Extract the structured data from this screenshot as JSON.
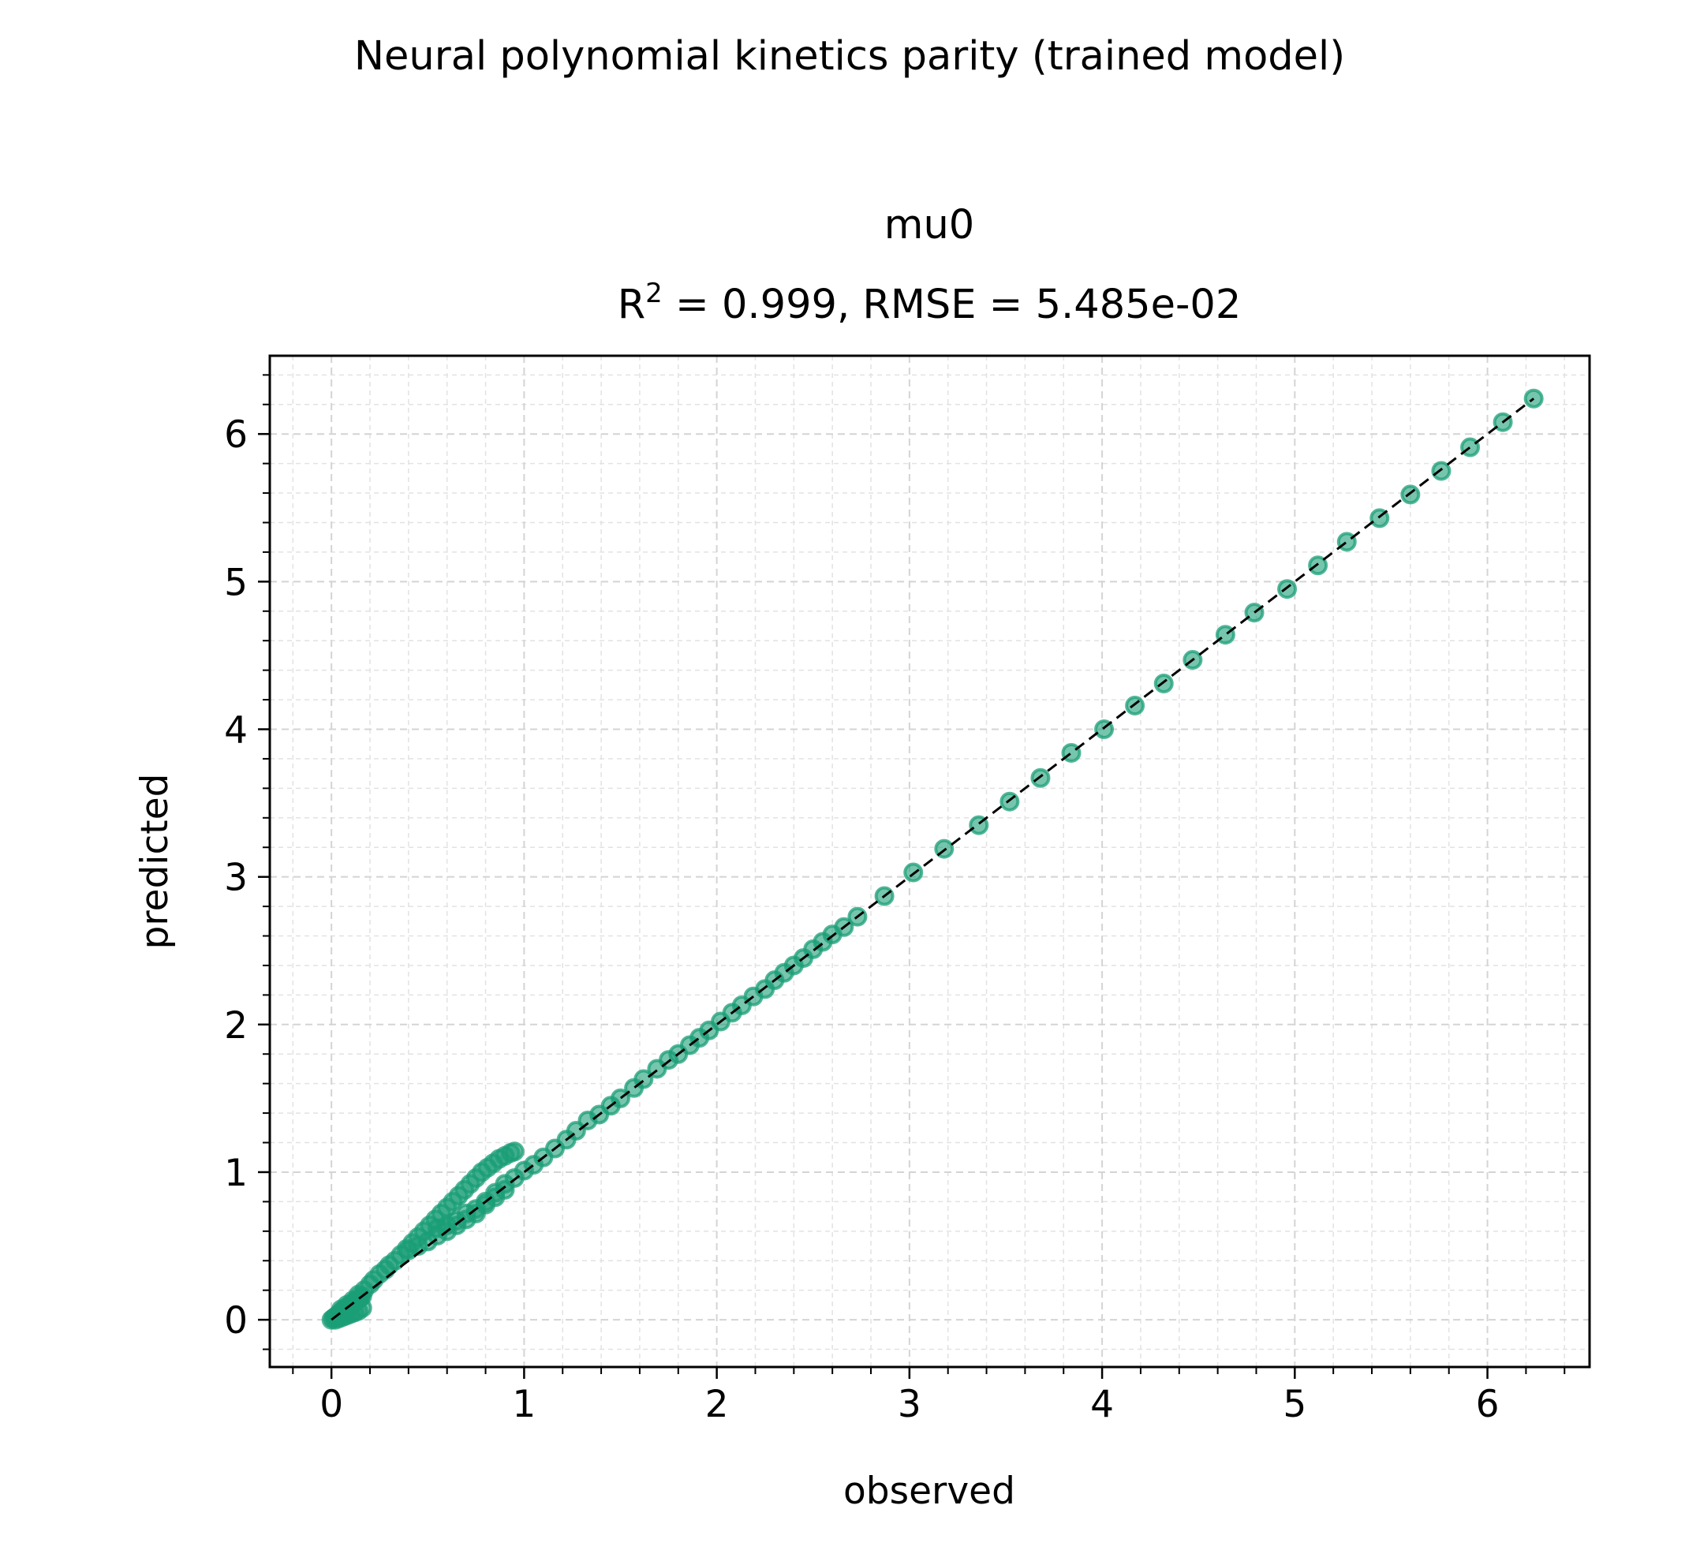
{
  "figure": {
    "suptitle": "Neural polynomial kinetics parity (trained model)"
  },
  "chart_data": {
    "type": "scatter",
    "title_line1": "mu0",
    "title_line2_prefix": "R",
    "title_line2_sup": "2",
    "title_line2_suffix": " = 0.999, RMSE = 5.485e-02",
    "xlabel": "observed",
    "ylabel": "predicted",
    "xlim": [
      -0.32,
      6.53
    ],
    "ylim": [
      -0.32,
      6.53
    ],
    "xticks": [
      0,
      1,
      2,
      3,
      4,
      5,
      6
    ],
    "yticks": [
      0,
      1,
      2,
      3,
      4,
      5,
      6
    ],
    "minor_step": 0.2,
    "grid": true,
    "marker_color": "#1b9e77",
    "reference_line": {
      "from": [
        0,
        0
      ],
      "to": [
        6.24,
        6.24
      ],
      "color": "#000000",
      "style": "dashed"
    },
    "x": [
      0.0,
      0.01,
      0.02,
      0.03,
      0.04,
      0.05,
      0.06,
      0.07,
      0.08,
      0.09,
      0.1,
      0.11,
      0.12,
      0.13,
      0.14,
      0.15,
      0.16,
      0.02,
      0.04,
      0.06,
      0.08,
      0.1,
      0.12,
      0.14,
      0.16,
      0.05,
      0.08,
      0.11,
      0.14,
      0.17,
      0.2,
      0.22,
      0.25,
      0.28,
      0.3,
      0.33,
      0.36,
      0.39,
      0.42,
      0.45,
      0.48,
      0.51,
      0.54,
      0.57,
      0.6,
      0.63,
      0.66,
      0.69,
      0.72,
      0.75,
      0.78,
      0.81,
      0.84,
      0.87,
      0.9,
      0.93,
      0.95,
      0.4,
      0.45,
      0.5,
      0.55,
      0.6,
      0.65,
      0.7,
      0.75,
      0.8,
      0.85,
      0.9,
      0.55,
      0.6,
      0.65,
      0.7,
      0.75,
      0.8,
      0.85,
      0.9,
      0.95,
      1.0,
      1.05,
      1.1,
      1.16,
      1.22,
      1.27,
      1.33,
      1.39,
      1.45,
      1.5,
      1.57,
      1.62,
      1.69,
      1.75,
      1.8,
      1.86,
      1.91,
      1.96,
      2.02,
      2.08,
      2.13,
      2.19,
      2.25,
      2.3,
      2.35,
      2.4,
      2.45,
      2.5,
      2.55,
      2.6,
      2.66,
      2.73,
      2.87,
      3.02,
      3.18,
      3.36,
      3.52,
      3.68,
      3.84,
      4.01,
      4.17,
      4.32,
      4.47,
      4.64,
      4.79,
      4.96,
      5.12,
      5.27,
      5.44,
      5.6,
      5.76,
      5.91,
      6.08,
      6.24
    ],
    "y": [
      0.0,
      0.01,
      0.02,
      0.03,
      0.04,
      0.05,
      0.06,
      0.07,
      0.08,
      0.09,
      0.1,
      0.11,
      0.12,
      0.13,
      0.14,
      0.15,
      0.16,
      0.0,
      0.01,
      0.02,
      0.03,
      0.04,
      0.05,
      0.06,
      0.08,
      0.07,
      0.1,
      0.13,
      0.17,
      0.2,
      0.24,
      0.27,
      0.31,
      0.34,
      0.37,
      0.4,
      0.44,
      0.48,
      0.52,
      0.56,
      0.6,
      0.64,
      0.68,
      0.72,
      0.76,
      0.8,
      0.84,
      0.88,
      0.92,
      0.96,
      1.0,
      1.03,
      1.06,
      1.09,
      1.11,
      1.13,
      1.14,
      0.47,
      0.5,
      0.53,
      0.57,
      0.6,
      0.64,
      0.68,
      0.72,
      0.78,
      0.83,
      0.88,
      0.62,
      0.64,
      0.67,
      0.72,
      0.75,
      0.8,
      0.86,
      0.92,
      0.96,
      1.01,
      1.05,
      1.1,
      1.16,
      1.22,
      1.28,
      1.35,
      1.39,
      1.45,
      1.5,
      1.57,
      1.63,
      1.7,
      1.76,
      1.8,
      1.86,
      1.91,
      1.96,
      2.02,
      2.08,
      2.13,
      2.19,
      2.24,
      2.3,
      2.35,
      2.4,
      2.45,
      2.51,
      2.56,
      2.61,
      2.66,
      2.73,
      2.87,
      3.03,
      3.19,
      3.35,
      3.51,
      3.67,
      3.84,
      4.0,
      4.16,
      4.31,
      4.47,
      4.64,
      4.79,
      4.95,
      5.11,
      5.27,
      5.43,
      5.59,
      5.75,
      5.91,
      6.08,
      6.24
    ]
  }
}
